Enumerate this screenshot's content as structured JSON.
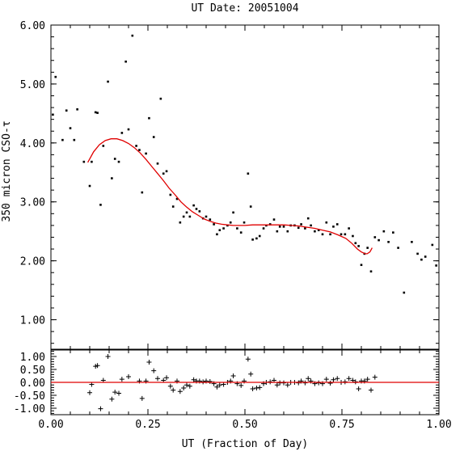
{
  "chart_data": [
    {
      "type": "scatter",
      "title": "UT Date: 20051004",
      "ylabel": "350 micron CSO-τ",
      "xlim": [
        0.0,
        1.0
      ],
      "ylim": [
        0.5,
        6.0
      ],
      "xticks": [
        "0.00",
        "0.25",
        "0.50",
        "0.75",
        "1.00"
      ],
      "yticks": [
        "1.00",
        "2.00",
        "3.00",
        "4.00",
        "5.00",
        "6.00"
      ],
      "ytick_values": [
        1,
        2,
        3,
        4,
        5,
        6
      ],
      "series": [
        {
          "marker": "dot",
          "points": [
            [
              0.005,
              4.48
            ],
            [
              0.012,
              5.12
            ],
            [
              0.03,
              4.05
            ],
            [
              0.04,
              4.55
            ],
            [
              0.05,
              4.25
            ],
            [
              0.06,
              4.05
            ],
            [
              0.068,
              4.57
            ],
            [
              0.085,
              3.68
            ],
            [
              0.1,
              3.27
            ],
            [
              0.105,
              3.68
            ],
            [
              0.115,
              4.52
            ],
            [
              0.12,
              4.51
            ],
            [
              0.128,
              2.95
            ],
            [
              0.135,
              3.95
            ],
            [
              0.147,
              5.04
            ],
            [
              0.157,
              3.4
            ],
            [
              0.165,
              3.73
            ],
            [
              0.175,
              3.68
            ],
            [
              0.183,
              4.17
            ],
            [
              0.193,
              5.38
            ],
            [
              0.2,
              4.23
            ],
            [
              0.21,
              5.82
            ],
            [
              0.22,
              3.95
            ],
            [
              0.228,
              3.88
            ],
            [
              0.235,
              3.16
            ],
            [
              0.245,
              3.82
            ],
            [
              0.253,
              4.42
            ],
            [
              0.265,
              4.1
            ],
            [
              0.275,
              3.65
            ],
            [
              0.283,
              4.75
            ],
            [
              0.29,
              3.48
            ],
            [
              0.298,
              3.52
            ],
            [
              0.308,
              3.12
            ],
            [
              0.315,
              2.92
            ],
            [
              0.325,
              3.05
            ],
            [
              0.333,
              2.65
            ],
            [
              0.342,
              2.75
            ],
            [
              0.35,
              2.82
            ],
            [
              0.358,
              2.75
            ],
            [
              0.368,
              2.94
            ],
            [
              0.375,
              2.88
            ],
            [
              0.383,
              2.84
            ],
            [
              0.392,
              2.72
            ],
            [
              0.4,
              2.75
            ],
            [
              0.41,
              2.7
            ],
            [
              0.42,
              2.62
            ],
            [
              0.428,
              2.45
            ],
            [
              0.435,
              2.52
            ],
            [
              0.445,
              2.55
            ],
            [
              0.455,
              2.6
            ],
            [
              0.463,
              2.65
            ],
            [
              0.47,
              2.82
            ],
            [
              0.48,
              2.55
            ],
            [
              0.49,
              2.48
            ],
            [
              0.498,
              2.65
            ],
            [
              0.508,
              3.48
            ],
            [
              0.515,
              2.92
            ],
            [
              0.52,
              2.36
            ],
            [
              0.53,
              2.38
            ],
            [
              0.538,
              2.42
            ],
            [
              0.548,
              2.55
            ],
            [
              0.555,
              2.6
            ],
            [
              0.565,
              2.62
            ],
            [
              0.575,
              2.7
            ],
            [
              0.583,
              2.5
            ],
            [
              0.59,
              2.58
            ],
            [
              0.6,
              2.58
            ],
            [
              0.61,
              2.5
            ],
            [
              0.618,
              2.6
            ],
            [
              0.628,
              2.6
            ],
            [
              0.638,
              2.56
            ],
            [
              0.645,
              2.62
            ],
            [
              0.655,
              2.55
            ],
            [
              0.663,
              2.72
            ],
            [
              0.67,
              2.6
            ],
            [
              0.68,
              2.5
            ],
            [
              0.69,
              2.52
            ],
            [
              0.7,
              2.45
            ],
            [
              0.71,
              2.65
            ],
            [
              0.72,
              2.45
            ],
            [
              0.728,
              2.58
            ],
            [
              0.738,
              2.62
            ],
            [
              0.748,
              2.45
            ],
            [
              0.758,
              2.45
            ],
            [
              0.768,
              2.55
            ],
            [
              0.778,
              2.42
            ],
            [
              0.785,
              2.3
            ],
            [
              0.793,
              2.25
            ],
            [
              0.8,
              1.93
            ],
            [
              0.808,
              2.12
            ],
            [
              0.816,
              2.22
            ],
            [
              0.825,
              1.82
            ],
            [
              0.835,
              2.4
            ],
            [
              0.845,
              2.35
            ],
            [
              0.858,
              2.5
            ],
            [
              0.87,
              2.32
            ],
            [
              0.882,
              2.48
            ],
            [
              0.895,
              2.22
            ],
            [
              0.91,
              1.46
            ],
            [
              0.93,
              2.32
            ],
            [
              0.945,
              2.12
            ],
            [
              0.955,
              2.02
            ],
            [
              0.965,
              2.07
            ],
            [
              0.983,
              2.27
            ],
            [
              0.993,
              1.92
            ]
          ]
        },
        {
          "name": "fit",
          "marker": "line",
          "color": "#e00000",
          "points": [
            [
              0.095,
              3.67
            ],
            [
              0.11,
              3.85
            ],
            [
              0.125,
              3.97
            ],
            [
              0.14,
              4.04
            ],
            [
              0.155,
              4.07
            ],
            [
              0.17,
              4.07
            ],
            [
              0.185,
              4.04
            ],
            [
              0.2,
              3.99
            ],
            [
              0.215,
              3.92
            ],
            [
              0.23,
              3.83
            ],
            [
              0.245,
              3.72
            ],
            [
              0.26,
              3.6
            ],
            [
              0.275,
              3.48
            ],
            [
              0.29,
              3.36
            ],
            [
              0.305,
              3.23
            ],
            [
              0.32,
              3.12
            ],
            [
              0.335,
              3.0
            ],
            [
              0.35,
              2.91
            ],
            [
              0.365,
              2.83
            ],
            [
              0.38,
              2.77
            ],
            [
              0.395,
              2.71
            ],
            [
              0.41,
              2.67
            ],
            [
              0.425,
              2.64
            ],
            [
              0.44,
              2.62
            ],
            [
              0.455,
              2.61
            ],
            [
              0.47,
              2.6
            ],
            [
              0.485,
              2.6
            ],
            [
              0.5,
              2.6
            ],
            [
              0.52,
              2.61
            ],
            [
              0.54,
              2.61
            ],
            [
              0.56,
              2.61
            ],
            [
              0.58,
              2.61
            ],
            [
              0.6,
              2.61
            ],
            [
              0.62,
              2.6
            ],
            [
              0.64,
              2.59
            ],
            [
              0.66,
              2.57
            ],
            [
              0.68,
              2.55
            ],
            [
              0.7,
              2.52
            ],
            [
              0.72,
              2.49
            ],
            [
              0.74,
              2.44
            ],
            [
              0.76,
              2.38
            ],
            [
              0.775,
              2.3
            ],
            [
              0.79,
              2.2
            ],
            [
              0.8,
              2.15
            ],
            [
              0.81,
              2.12
            ],
            [
              0.815,
              2.12
            ],
            [
              0.822,
              2.15
            ],
            [
              0.828,
              2.22
            ]
          ]
        }
      ]
    },
    {
      "type": "scatter",
      "xlabel": "UT (Fraction of Day)",
      "xlim": [
        0.0,
        1.0
      ],
      "ylim": [
        -1.25,
        1.25
      ],
      "xticks": [
        "0.00",
        "0.25",
        "0.50",
        "0.75",
        "1.00"
      ],
      "yticks": [
        "1.00",
        "0.50",
        "0.00",
        "-0.50",
        "-1.00"
      ],
      "ytick_values": [
        1.0,
        0.5,
        0.0,
        -0.5,
        -1.0
      ],
      "series": [
        {
          "marker": "plus",
          "points": [
            [
              0.1,
              -0.4
            ],
            [
              0.105,
              -0.08
            ],
            [
              0.115,
              0.62
            ],
            [
              0.12,
              0.65
            ],
            [
              0.128,
              -1.02
            ],
            [
              0.135,
              0.08
            ],
            [
              0.147,
              1.0
            ],
            [
              0.157,
              -0.65
            ],
            [
              0.165,
              -0.38
            ],
            [
              0.175,
              -0.42
            ],
            [
              0.183,
              0.12
            ],
            [
              0.2,
              0.22
            ],
            [
              0.228,
              0.05
            ],
            [
              0.235,
              -0.62
            ],
            [
              0.245,
              0.05
            ],
            [
              0.253,
              0.78
            ],
            [
              0.265,
              0.45
            ],
            [
              0.275,
              0.15
            ],
            [
              0.29,
              0.08
            ],
            [
              0.298,
              0.18
            ],
            [
              0.308,
              -0.15
            ],
            [
              0.315,
              -0.3
            ],
            [
              0.325,
              0.05
            ],
            [
              0.333,
              -0.35
            ],
            [
              0.342,
              -0.22
            ],
            [
              0.35,
              -0.1
            ],
            [
              0.358,
              -0.15
            ],
            [
              0.368,
              0.1
            ],
            [
              0.375,
              0.05
            ],
            [
              0.383,
              0.05
            ],
            [
              0.392,
              0.02
            ],
            [
              0.4,
              0.05
            ],
            [
              0.41,
              0.03
            ],
            [
              0.42,
              -0.05
            ],
            [
              0.428,
              -0.18
            ],
            [
              0.435,
              -0.1
            ],
            [
              0.445,
              -0.08
            ],
            [
              0.455,
              0.0
            ],
            [
              0.463,
              0.05
            ],
            [
              0.47,
              0.25
            ],
            [
              0.48,
              -0.05
            ],
            [
              0.49,
              -0.12
            ],
            [
              0.498,
              0.05
            ],
            [
              0.508,
              0.9
            ],
            [
              0.515,
              0.32
            ],
            [
              0.52,
              -0.25
            ],
            [
              0.53,
              -0.22
            ],
            [
              0.538,
              -0.2
            ],
            [
              0.548,
              -0.05
            ],
            [
              0.555,
              0.0
            ],
            [
              0.565,
              0.02
            ],
            [
              0.575,
              0.08
            ],
            [
              0.583,
              -0.1
            ],
            [
              0.59,
              -0.02
            ],
            [
              0.6,
              -0.02
            ],
            [
              0.61,
              -0.1
            ],
            [
              0.618,
              0.0
            ],
            [
              0.628,
              0.0
            ],
            [
              0.638,
              -0.02
            ],
            [
              0.645,
              0.05
            ],
            [
              0.655,
              -0.02
            ],
            [
              0.663,
              0.15
            ],
            [
              0.67,
              0.05
            ],
            [
              0.68,
              -0.05
            ],
            [
              0.69,
              -0.02
            ],
            [
              0.7,
              -0.05
            ],
            [
              0.71,
              0.12
            ],
            [
              0.72,
              -0.03
            ],
            [
              0.728,
              0.1
            ],
            [
              0.738,
              0.15
            ],
            [
              0.748,
              0.0
            ],
            [
              0.758,
              0.02
            ],
            [
              0.768,
              0.15
            ],
            [
              0.778,
              0.08
            ],
            [
              0.785,
              0.02
            ],
            [
              0.793,
              -0.25
            ],
            [
              0.8,
              0.05
            ],
            [
              0.808,
              0.05
            ],
            [
              0.816,
              0.12
            ],
            [
              0.825,
              -0.3
            ],
            [
              0.835,
              0.2
            ]
          ]
        },
        {
          "name": "zero",
          "marker": "line",
          "color": "#e00000",
          "points": [
            [
              0.0,
              0.0
            ],
            [
              1.0,
              0.0
            ]
          ]
        }
      ]
    }
  ]
}
